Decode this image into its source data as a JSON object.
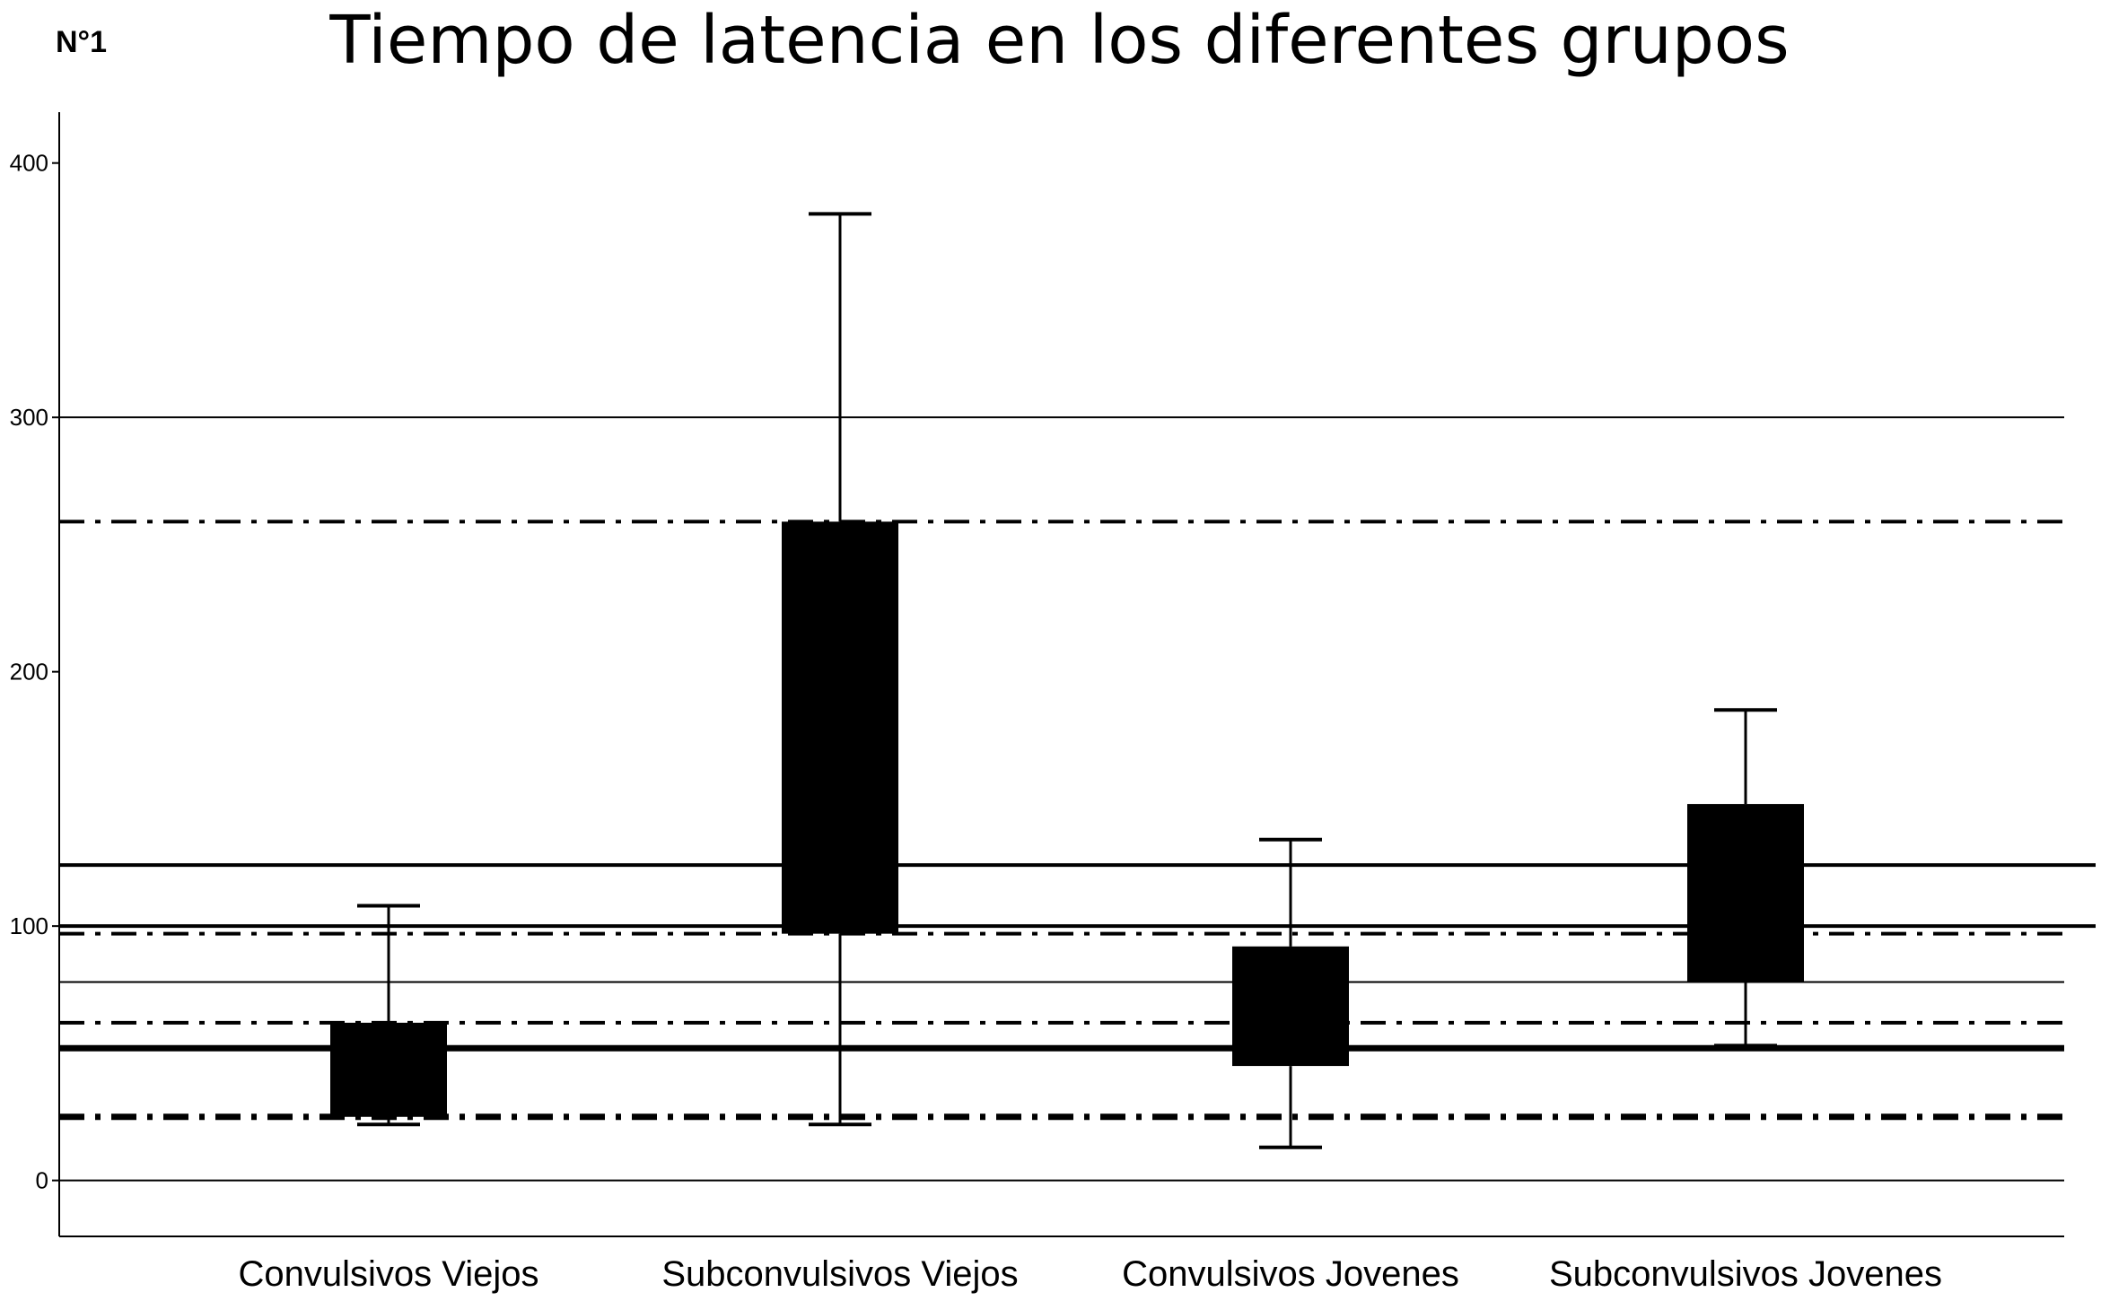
{
  "figure_label": "N°1",
  "chart_data": {
    "type": "box",
    "title": "Tiempo de latencia en los diferentes grupos",
    "xlabel": "",
    "ylabel": "",
    "ylim": [
      -22,
      420
    ],
    "yticks": [
      0,
      100,
      200,
      300,
      400
    ],
    "grid": false,
    "categories": [
      "Convulsivos Viejos",
      "Subconvulsivos Viejos",
      "Convulsivos Jovenes",
      "Subconvulsivos Jovenes"
    ],
    "boxes": [
      {
        "category": "Convulsivos Viejos",
        "whisker_low": 22,
        "q1": 25,
        "q3": 62,
        "whisker_high": 108
      },
      {
        "category": "Subconvulsivos Viejos",
        "whisker_low": 22,
        "q1": 97,
        "q3": 259,
        "whisker_high": 380
      },
      {
        "category": "Convulsivos Jovenes",
        "whisker_low": 13,
        "q1": 45,
        "q3": 92,
        "whisker_high": 134
      },
      {
        "category": "Subconvulsivos Jovenes",
        "whisker_low": 53,
        "q1": 78,
        "q3": 148,
        "whisker_high": 185
      }
    ],
    "reference_lines": [
      {
        "value": 300,
        "style": "solid",
        "weight": "thin"
      },
      {
        "value": 259,
        "style": "dash-dot",
        "weight": "medium"
      },
      {
        "value": 124,
        "style": "solid",
        "weight": "medium"
      },
      {
        "value": 100,
        "style": "solid",
        "weight": "medium"
      },
      {
        "value": 97,
        "style": "dash-dot",
        "weight": "medium"
      },
      {
        "value": 78,
        "style": "solid",
        "weight": "thin"
      },
      {
        "value": 62,
        "style": "dash-dot",
        "weight": "medium"
      },
      {
        "value": 52,
        "style": "solid",
        "weight": "thick"
      },
      {
        "value": 25,
        "style": "dash-dot",
        "weight": "thick"
      },
      {
        "value": 0,
        "style": "solid",
        "weight": "thin"
      }
    ]
  }
}
